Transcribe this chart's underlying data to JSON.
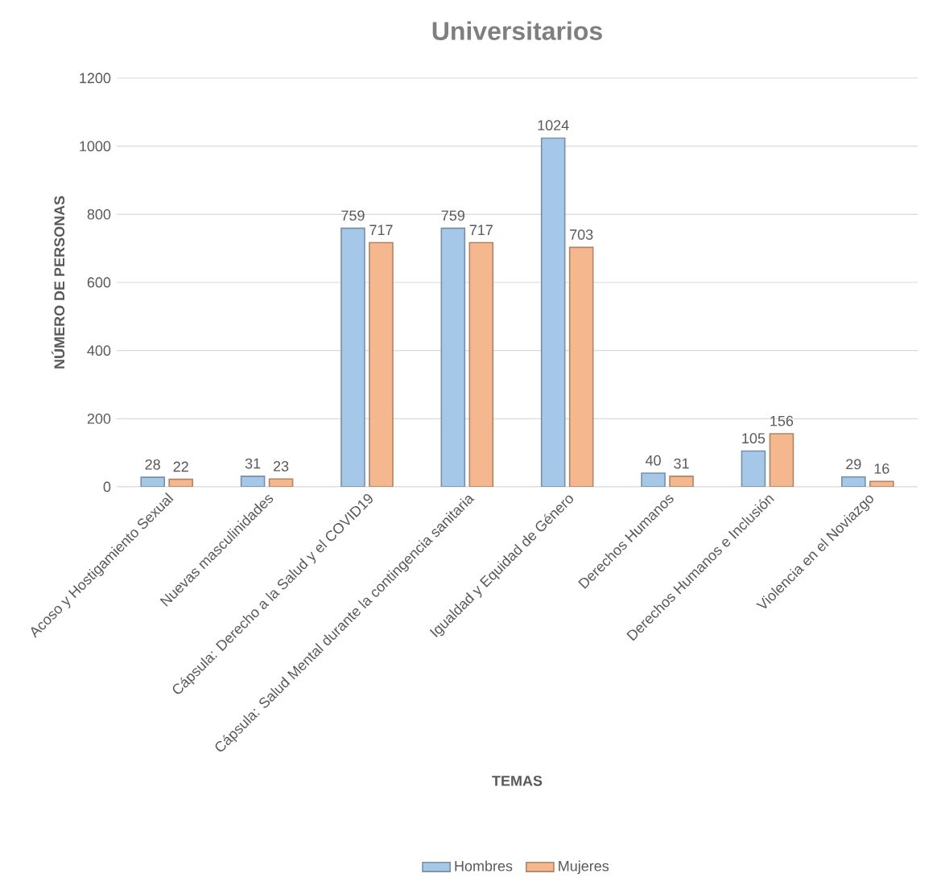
{
  "chart_data": {
    "type": "bar",
    "title": "Universitarios",
    "xlabel": "TEMAS",
    "ylabel": "NÚMERO DE PERSONAS",
    "categories": [
      "Acoso y Hostigamiento Sexual",
      "Nuevas masculinidades",
      "Cápsula: Derecho a la Salud y el COVID19",
      "Cápsula: Salud Mental durante la contingencia sanitaria",
      "Igualdad y Equidad de Género",
      "Derechos Humanos",
      "Derechos Humanos e Inclusión",
      "Violencia en el Noviazgo"
    ],
    "series": [
      {
        "name": "Hombres",
        "color": "#a5c8e8",
        "values": [
          28,
          31,
          759,
          759,
          1024,
          40,
          105,
          29
        ]
      },
      {
        "name": "Mujeres",
        "color": "#f5b78e",
        "values": [
          22,
          23,
          717,
          717,
          703,
          31,
          156,
          16
        ]
      }
    ],
    "ylim": [
      0,
      1200
    ],
    "yticks": [
      0,
      200,
      400,
      600,
      800,
      1000,
      1200
    ],
    "grid": "y",
    "legend": "bottom",
    "data_labels": true
  }
}
